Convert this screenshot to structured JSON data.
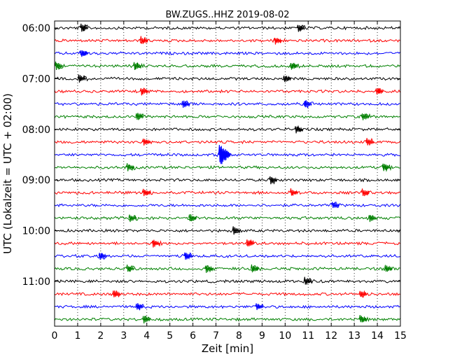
{
  "chart_data": {
    "type": "line",
    "title": "BW.ZUGS..HHZ 2019-08-02",
    "xlabel": "Zeit  [min]",
    "ylabel": "UTC (Lokalzeit = UTC + 02:00)",
    "xlim": [
      0,
      15
    ],
    "x_ticks": [
      "0",
      "1",
      "2",
      "3",
      "4",
      "5",
      "6",
      "7",
      "8",
      "9",
      "10",
      "11",
      "12",
      "13",
      "14",
      "15"
    ],
    "y_ticks": [
      "06:00",
      "07:00",
      "08:00",
      "09:00",
      "10:00",
      "11:00"
    ],
    "grid": "vertical-dotted",
    "trace_interval_min": 15,
    "trace_colors": [
      "#000000",
      "#ff0000",
      "#0000ff",
      "#008000"
    ],
    "traces": [
      {
        "start": "06:00",
        "events": [
          1.3,
          10.7
        ]
      },
      {
        "start": "06:15",
        "events": [
          3.9,
          9.7
        ]
      },
      {
        "start": "06:30",
        "events": [
          1.3
        ]
      },
      {
        "start": "06:45",
        "events": [
          0.2,
          3.6,
          10.4
        ]
      },
      {
        "start": "07:00",
        "events": [
          1.2,
          10.1
        ]
      },
      {
        "start": "07:15",
        "events": [
          3.9,
          14.1
        ]
      },
      {
        "start": "07:30",
        "events": [
          5.7,
          11.0
        ]
      },
      {
        "start": "07:45",
        "events": [
          3.7,
          13.5
        ]
      },
      {
        "start": "08:00",
        "events": [
          10.6
        ]
      },
      {
        "start": "08:15",
        "events": [
          4.0,
          13.7
        ]
      },
      {
        "start": "08:30",
        "events": [
          7.3
        ]
      },
      {
        "start": "08:45",
        "events": [
          3.3,
          14.4
        ]
      },
      {
        "start": "09:00",
        "events": [
          9.5
        ]
      },
      {
        "start": "09:15",
        "events": [
          4.0,
          10.4,
          13.5
        ]
      },
      {
        "start": "09:30",
        "events": [
          12.2
        ]
      },
      {
        "start": "09:45",
        "events": [
          3.4,
          6.0,
          13.8
        ]
      },
      {
        "start": "10:00",
        "events": [
          7.9
        ]
      },
      {
        "start": "10:15",
        "events": [
          4.4,
          8.5
        ]
      },
      {
        "start": "10:30",
        "events": [
          2.1,
          5.8
        ]
      },
      {
        "start": "10:45",
        "events": [
          3.3,
          6.7,
          8.7,
          14.5
        ]
      },
      {
        "start": "11:00",
        "events": [
          11.0
        ]
      },
      {
        "start": "11:15",
        "events": [
          2.7,
          13.4
        ]
      },
      {
        "start": "11:30",
        "events": [
          3.7,
          8.9
        ]
      },
      {
        "start": "11:45",
        "events": [
          4.0,
          13.4
        ]
      }
    ]
  }
}
